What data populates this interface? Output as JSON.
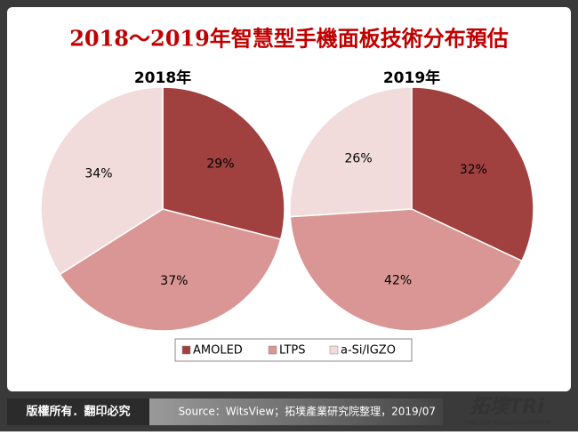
{
  "title": "2018～2019年智慧型手機面板技術分布預估",
  "footer": {
    "copyright": "版權所有．翻印必究",
    "source": "Source：WitsView；拓墣產業研究院整理，2019/07",
    "logo": "拓墣TRi",
    "logo_subtitle": "TOPOLOGY RESEARCH INSTITUTE"
  },
  "chart_data": [
    {
      "type": "pie",
      "title": "2018年",
      "categories": [
        "AMOLED",
        "LTPS",
        "a-Si/IGZO"
      ],
      "values": [
        29,
        37,
        34
      ],
      "value_labels": [
        "29%",
        "37%",
        "34%"
      ],
      "colors": [
        "#a0413f",
        "#d99694",
        "#f2dcdb"
      ]
    },
    {
      "type": "pie",
      "title": "2019年",
      "categories": [
        "AMOLED",
        "LTPS",
        "a-Si/IGZO"
      ],
      "values": [
        32,
        42,
        26
      ],
      "value_labels": [
        "32%",
        "42%",
        "26%"
      ],
      "colors": [
        "#a0413f",
        "#d99694",
        "#f2dcdb"
      ]
    }
  ]
}
